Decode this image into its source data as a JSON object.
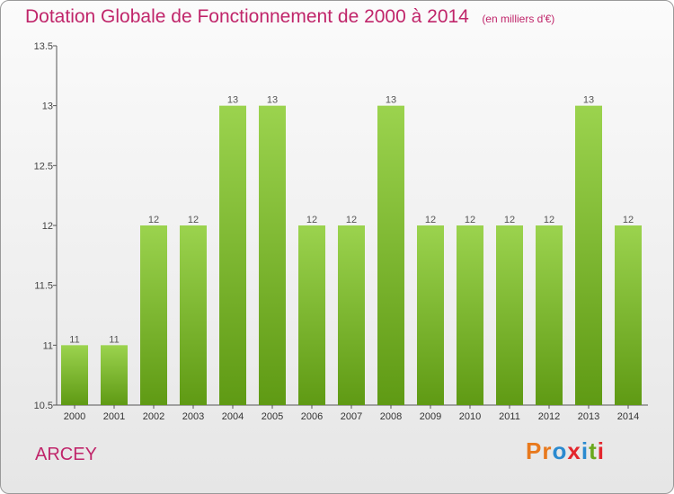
{
  "title": "Dotation Globale de Fonctionnement de 2000 à 2014",
  "unit_label": "(en milliers d'€)",
  "commune": "ARCEY",
  "logo": {
    "text": "Proxiti",
    "colors": [
      "#e8791d",
      "#e8791d",
      "#2a8ad0",
      "#e3262d",
      "#2a8ad0",
      "#6aa81d",
      "#e3262d"
    ]
  },
  "chart_data": {
    "type": "bar",
    "categories": [
      "2000",
      "2001",
      "2002",
      "2003",
      "2004",
      "2005",
      "2006",
      "2007",
      "2008",
      "2009",
      "2010",
      "2011",
      "2012",
      "2013",
      "2014"
    ],
    "values": [
      11,
      11,
      12,
      12,
      13,
      13,
      12,
      12,
      13,
      12,
      12,
      12,
      12,
      13,
      12
    ],
    "ylim": [
      10.5,
      13.5
    ],
    "yticks": [
      "10.5",
      "11",
      "11.5",
      "12",
      "12.5",
      "13",
      "13.5"
    ],
    "bar_color": "#8cc63f",
    "grid": false
  }
}
